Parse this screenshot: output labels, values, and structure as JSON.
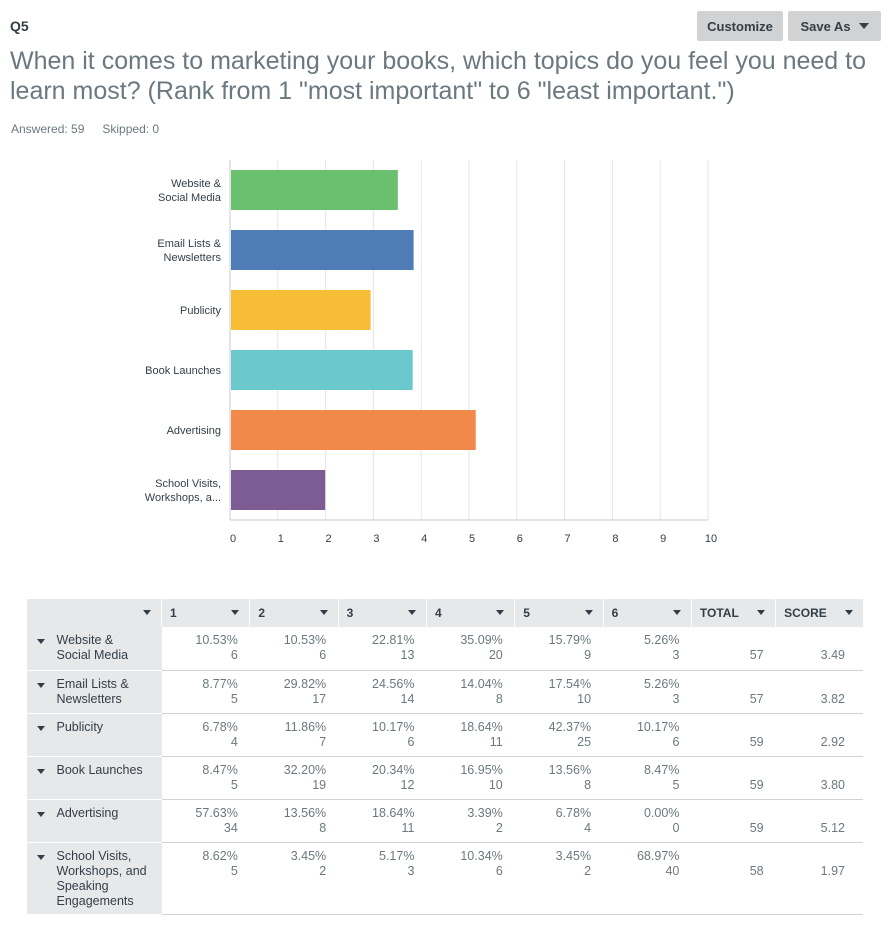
{
  "question": {
    "number": "Q5",
    "title": "When it comes to marketing your books, which topics do you feel you need to learn most? (Rank from 1 \"most important\" to 6 \"least important.\")",
    "answered": "Answered: 59",
    "skipped": "Skipped: 0"
  },
  "toolbar": {
    "customize_label": "Customize",
    "save_as_label": "Save As"
  },
  "chart_data": {
    "type": "bar",
    "orientation": "horizontal",
    "categories": [
      [
        "Website &",
        "Social Media"
      ],
      [
        "Email Lists &",
        "Newsletters"
      ],
      [
        "Publicity"
      ],
      [
        "Book Launches"
      ],
      [
        "Advertising"
      ],
      [
        "School Visits,",
        "Workshops, a..."
      ]
    ],
    "values": [
      3.49,
      3.82,
      2.92,
      3.8,
      5.12,
      1.97
    ],
    "colors": [
      "#6bc06f",
      "#507cb6",
      "#f7bd36",
      "#6bc8cd",
      "#f0894a",
      "#7d5b93"
    ],
    "xlim": [
      0,
      10
    ],
    "xticks": [
      "0",
      "1",
      "2",
      "3",
      "4",
      "5",
      "6",
      "7",
      "8",
      "9",
      "10"
    ],
    "grid": true
  },
  "table": {
    "headers": [
      "",
      "1",
      "2",
      "3",
      "4",
      "5",
      "6",
      "TOTAL",
      "SCORE"
    ],
    "rows": [
      {
        "label": "Website & Social Media",
        "cells": [
          [
            "10.53%",
            "6"
          ],
          [
            "10.53%",
            "6"
          ],
          [
            "22.81%",
            "13"
          ],
          [
            "35.09%",
            "20"
          ],
          [
            "15.79%",
            "9"
          ],
          [
            "5.26%",
            "3"
          ]
        ],
        "total": "57",
        "score": "3.49"
      },
      {
        "label": "Email Lists & Newsletters",
        "cells": [
          [
            "8.77%",
            "5"
          ],
          [
            "29.82%",
            "17"
          ],
          [
            "24.56%",
            "14"
          ],
          [
            "14.04%",
            "8"
          ],
          [
            "17.54%",
            "10"
          ],
          [
            "5.26%",
            "3"
          ]
        ],
        "total": "57",
        "score": "3.82"
      },
      {
        "label": "Publicity",
        "cells": [
          [
            "6.78%",
            "4"
          ],
          [
            "11.86%",
            "7"
          ],
          [
            "10.17%",
            "6"
          ],
          [
            "18.64%",
            "11"
          ],
          [
            "42.37%",
            "25"
          ],
          [
            "10.17%",
            "6"
          ]
        ],
        "total": "59",
        "score": "2.92"
      },
      {
        "label": "Book Launches",
        "cells": [
          [
            "8.47%",
            "5"
          ],
          [
            "32.20%",
            "19"
          ],
          [
            "20.34%",
            "12"
          ],
          [
            "16.95%",
            "10"
          ],
          [
            "13.56%",
            "8"
          ],
          [
            "8.47%",
            "5"
          ]
        ],
        "total": "59",
        "score": "3.80"
      },
      {
        "label": "Advertising",
        "cells": [
          [
            "57.63%",
            "34"
          ],
          [
            "13.56%",
            "8"
          ],
          [
            "18.64%",
            "11"
          ],
          [
            "3.39%",
            "2"
          ],
          [
            "6.78%",
            "4"
          ],
          [
            "0.00%",
            "0"
          ]
        ],
        "total": "59",
        "score": "5.12"
      },
      {
        "label": "School Visits, Workshops, and Speaking Engagements",
        "cells": [
          [
            "8.62%",
            "5"
          ],
          [
            "3.45%",
            "2"
          ],
          [
            "5.17%",
            "3"
          ],
          [
            "10.34%",
            "6"
          ],
          [
            "3.45%",
            "2"
          ],
          [
            "68.97%",
            "40"
          ]
        ],
        "total": "58",
        "score": "1.97"
      }
    ]
  }
}
